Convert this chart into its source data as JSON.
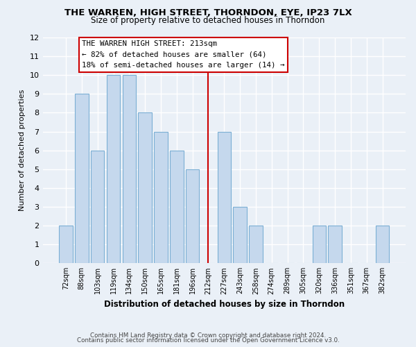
{
  "title": "THE WARREN, HIGH STREET, THORNDON, EYE, IP23 7LX",
  "subtitle": "Size of property relative to detached houses in Thorndon",
  "xlabel": "Distribution of detached houses by size in Thorndon",
  "ylabel": "Number of detached properties",
  "categories": [
    "72sqm",
    "88sqm",
    "103sqm",
    "119sqm",
    "134sqm",
    "150sqm",
    "165sqm",
    "181sqm",
    "196sqm",
    "212sqm",
    "227sqm",
    "243sqm",
    "258sqm",
    "274sqm",
    "289sqm",
    "305sqm",
    "320sqm",
    "336sqm",
    "351sqm",
    "367sqm",
    "382sqm"
  ],
  "values": [
    2,
    9,
    6,
    10,
    10,
    8,
    7,
    6,
    5,
    0,
    7,
    3,
    2,
    0,
    0,
    0,
    2,
    2,
    0,
    0,
    2
  ],
  "vline_index": 9,
  "vline_color": "#cc0000",
  "bar_color": "#c5d8ed",
  "bar_edge_color": "#7bafd4",
  "ylim": [
    0,
    12
  ],
  "yticks": [
    0,
    1,
    2,
    3,
    4,
    5,
    6,
    7,
    8,
    9,
    10,
    11,
    12
  ],
  "annotation_title": "THE WARREN HIGH STREET: 213sqm",
  "annotation_line1": "← 82% of detached houses are smaller (64)",
  "annotation_line2": "18% of semi-detached houses are larger (14) →",
  "annotation_box_color": "#ffffff",
  "annotation_box_edge": "#cc0000",
  "footer_line1": "Contains HM Land Registry data © Crown copyright and database right 2024.",
  "footer_line2": "Contains public sector information licensed under the Open Government Licence v3.0.",
  "bg_color": "#eaf0f7",
  "grid_color": "#ffffff"
}
